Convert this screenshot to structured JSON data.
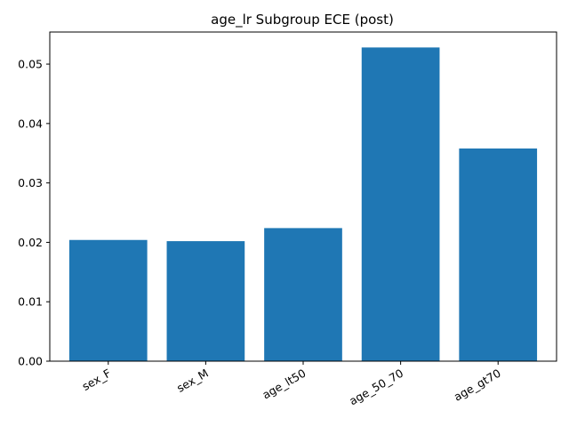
{
  "chart_data": {
    "type": "bar",
    "title": "age_lr Subgroup ECE (post)",
    "xlabel": "",
    "ylabel": "",
    "categories": [
      "sex_F",
      "sex_M",
      "age_lt50",
      "age_50_70",
      "age_gt70"
    ],
    "values": [
      0.0204,
      0.0202,
      0.0224,
      0.0528,
      0.0358
    ],
    "ylim": [
      0,
      0.0554
    ],
    "yticks": [
      0.0,
      0.01,
      0.02,
      0.03,
      0.04,
      0.05
    ],
    "ytick_labels": [
      "0.00",
      "0.01",
      "0.02",
      "0.03",
      "0.04",
      "0.05"
    ],
    "grid": false,
    "legend": "none",
    "bar_color": "#1f77b4"
  }
}
